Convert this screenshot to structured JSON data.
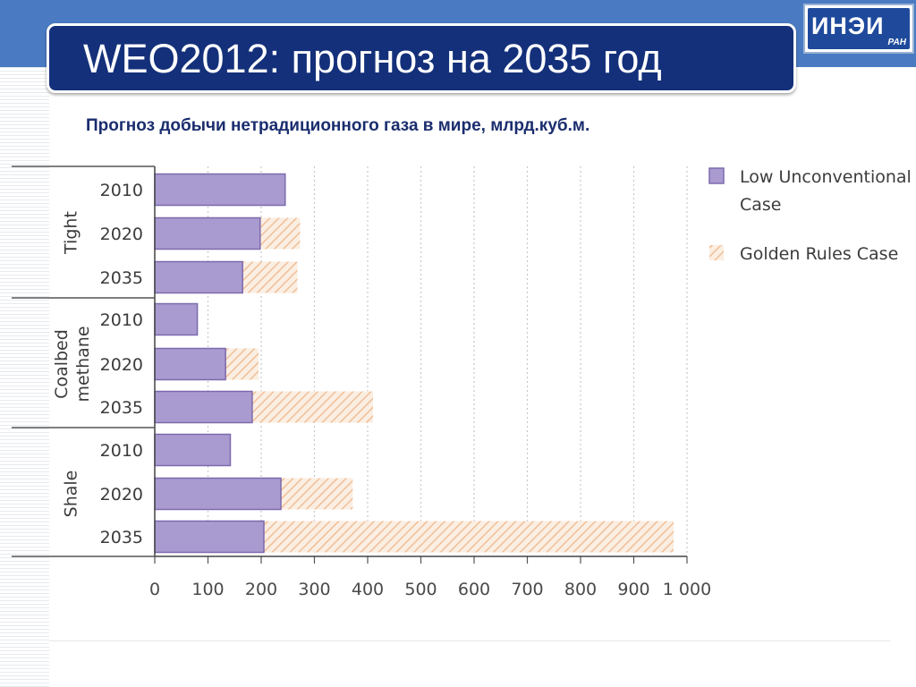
{
  "slide": {
    "title": "WEO2012: прогноз на 2035 год",
    "subtitle": "Прогноз добычи нетрадиционного газа в мире, млрд.куб.м.",
    "logo_text": "ИНЭИ",
    "logo_sub": "РАН"
  },
  "colors": {
    "header_band": "#4a7bc2",
    "title_box": "#14307a",
    "low_case": "#a99bcf",
    "low_case_border": "#7d6aae",
    "golden_hatch": "#f2c8a6"
  },
  "chart_data": {
    "type": "bar",
    "orientation": "horizontal",
    "stacked": true,
    "groups": [
      {
        "name": "Tight",
        "categories": [
          "2010",
          "2020",
          "2035"
        ]
      },
      {
        "name": "Coalbed methane",
        "categories": [
          "2010",
          "2020",
          "2035"
        ]
      },
      {
        "name": "Shale",
        "categories": [
          "2010",
          "2020",
          "2035"
        ]
      }
    ],
    "series": [
      {
        "name": "Low Unconventional Case",
        "values": [
          245,
          198,
          165,
          80,
          133,
          183,
          142,
          237,
          205
        ]
      },
      {
        "name": "Golden Rules Case",
        "values": [
          0,
          75,
          103,
          0,
          62,
          227,
          0,
          135,
          770
        ]
      }
    ],
    "xlim": [
      0,
      1000
    ],
    "xticks": [
      "0",
      "100",
      "200",
      "300",
      "400",
      "500",
      "600",
      "700",
      "800",
      "900",
      "1 000"
    ],
    "grid": "vertical-dotted",
    "legend_position": "right"
  }
}
